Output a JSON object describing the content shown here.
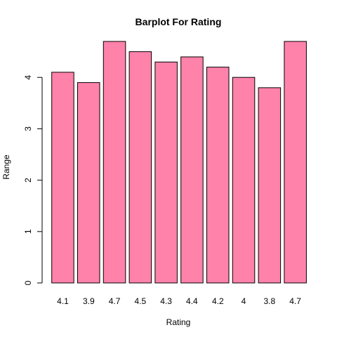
{
  "chart_data": {
    "type": "bar",
    "title": "Barplot For Rating",
    "xlabel": "Rating",
    "ylabel": "Range",
    "categories": [
      "4.1",
      "3.9",
      "4.7",
      "4.5",
      "4.3",
      "4.4",
      "4.2",
      "4",
      "3.8",
      "4.7"
    ],
    "values": [
      4.1,
      3.9,
      4.7,
      4.5,
      4.3,
      4.4,
      4.2,
      4.0,
      3.8,
      4.7
    ],
    "ylim": [
      0,
      4.7
    ],
    "yticks": [
      "0",
      "1",
      "2",
      "3",
      "4"
    ],
    "bar_color": "#FF82AB",
    "grid": false
  }
}
